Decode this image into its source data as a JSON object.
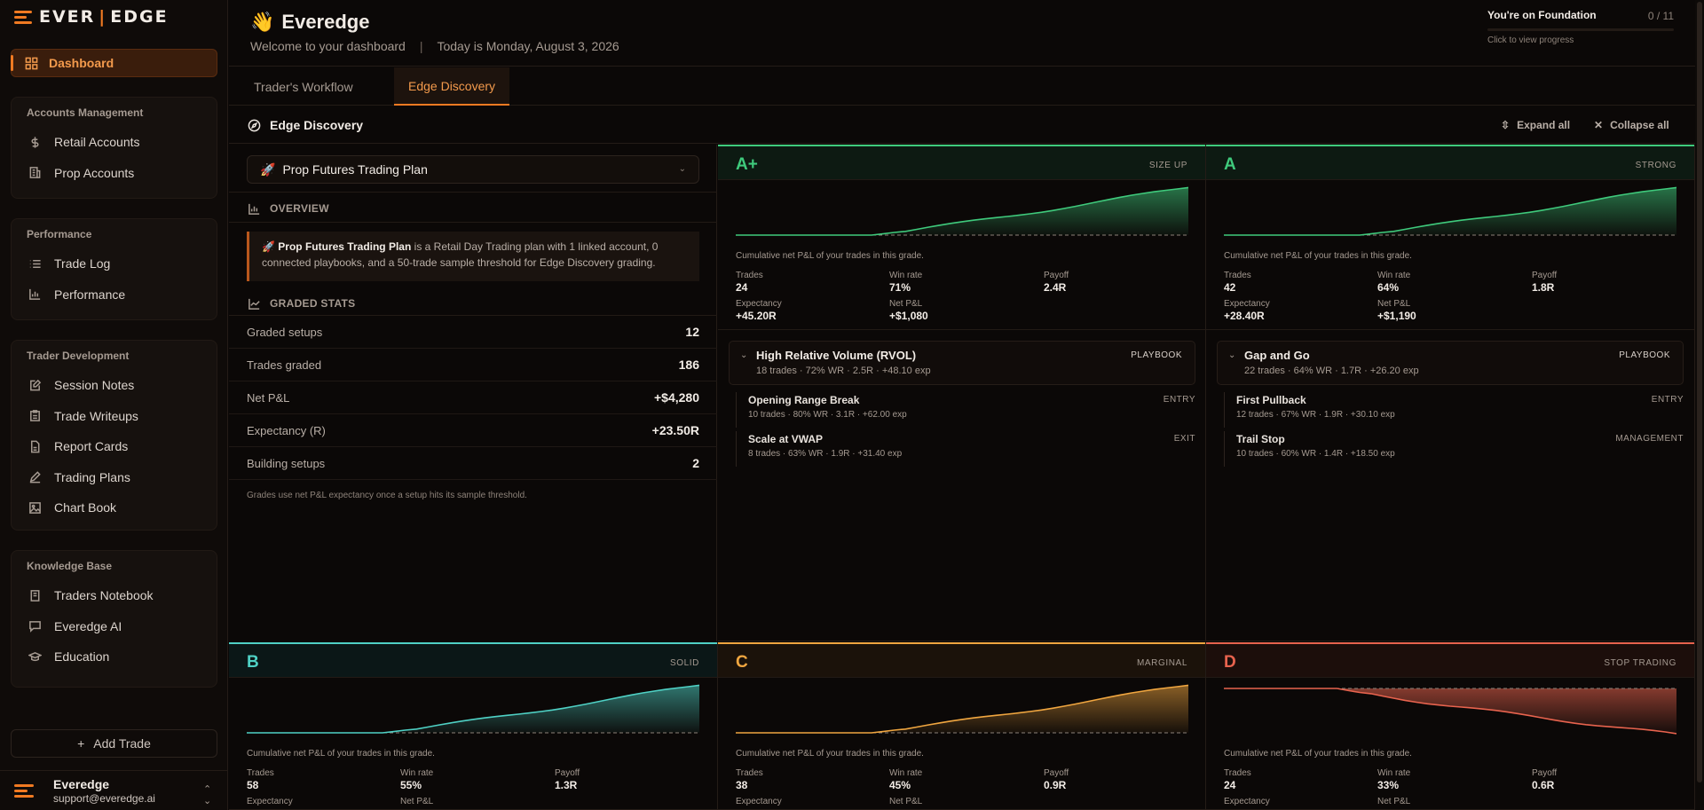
{
  "brand": {
    "left": "EVER",
    "right": "EDGE",
    "accent": "#f07a22"
  },
  "sidebar": {
    "dashboard": "Dashboard",
    "groups": [
      {
        "title": "Accounts Management",
        "items": [
          {
            "label": "Retail Accounts",
            "icon": "dollar-icon"
          },
          {
            "label": "Prop Accounts",
            "icon": "building-icon"
          }
        ]
      },
      {
        "title": "Performance",
        "items": [
          {
            "label": "Trade Log",
            "icon": "list-icon"
          },
          {
            "label": "Performance",
            "icon": "bar-chart-icon"
          }
        ]
      },
      {
        "title": "Trader Development",
        "items": [
          {
            "label": "Session Notes",
            "icon": "note-edit-icon"
          },
          {
            "label": "Trade Writeups",
            "icon": "clipboard-icon"
          },
          {
            "label": "Report Cards",
            "icon": "file-icon"
          },
          {
            "label": "Trading Plans",
            "icon": "pencil-icon"
          },
          {
            "label": "Chart Book",
            "icon": "image-icon"
          }
        ]
      },
      {
        "title": "Knowledge Base",
        "items": [
          {
            "label": "Traders Notebook",
            "icon": "book-icon"
          },
          {
            "label": "Everedge AI",
            "icon": "chat-icon"
          },
          {
            "label": "Education",
            "icon": "graduation-cap-icon"
          }
        ]
      }
    ],
    "add_trade": "Add Trade",
    "user": {
      "name": "Everedge",
      "email": "support@everedge.ai"
    }
  },
  "header": {
    "emoji": "👋",
    "title": "Everedge",
    "welcome": "Welcome to your dashboard",
    "date": "Today is Monday, August 3, 2026",
    "foundation": {
      "title": "You're on Foundation",
      "count": "0 / 11",
      "progress": 0,
      "hint": "Click to view progress"
    }
  },
  "tabs": [
    {
      "label": "Trader's Workflow",
      "active": false
    },
    {
      "label": "Edge Discovery",
      "active": true
    }
  ],
  "section": {
    "title": "Edge Discovery",
    "expand": "Expand all",
    "collapse": "Collapse all"
  },
  "plan": {
    "name": "Prop Futures Trading Plan",
    "emoji": "🚀",
    "overview_label": "OVERVIEW",
    "overview_text": " is a Retail Day Trading plan with 1 linked account, 0 connected playbooks, and a 50-trade sample threshold for Edge Discovery grading.",
    "stats_label": "GRADED STATS",
    "stats": [
      {
        "k": "Graded setups",
        "v": "12"
      },
      {
        "k": "Trades graded",
        "v": "186"
      },
      {
        "k": "Net P&L",
        "v": "+$4,280"
      },
      {
        "k": "Expectancy (R)",
        "v": "+23.50R"
      },
      {
        "k": "Building setups",
        "v": "2"
      }
    ],
    "footnote": "Grades use net P&L expectancy once a setup hits its sample threshold."
  },
  "caption": "Cumulative net P&L of your trades in this grade.",
  "labels": {
    "trades": "Trades",
    "win": "Win rate",
    "payoff": "Payoff",
    "exp": "Expectancy",
    "pnl": "Net P&L"
  },
  "grades": [
    {
      "letter": "A+",
      "tag": "SIZE UP",
      "color": "#3fca7c",
      "trades": "24",
      "win": "71%",
      "payoff": "2.4R",
      "exp": "+45.20R",
      "pnl": "+$1,080",
      "playbook": {
        "title": "High Relative Volume (RVOL)",
        "sub": "18 trades · 72% WR · 2.5R · +48.10 exp",
        "tag": "PLAYBOOK",
        "items": [
          {
            "t": "Opening Range Break",
            "s": "10 trades · 80% WR · 3.1R · +62.00 exp",
            "k": "ENTRY"
          },
          {
            "t": "Scale at VWAP",
            "s": "8 trades · 63% WR · 1.9R · +31.40 exp",
            "k": "EXIT"
          }
        ]
      }
    },
    {
      "letter": "A",
      "tag": "STRONG",
      "color": "#3fca7c",
      "trades": "42",
      "win": "64%",
      "payoff": "1.8R",
      "exp": "+28.40R",
      "pnl": "+$1,190",
      "playbook": {
        "title": "Gap and Go",
        "sub": "22 trades · 64% WR · 1.7R · +26.20 exp",
        "tag": "PLAYBOOK",
        "items": [
          {
            "t": "First Pullback",
            "s": "12 trades · 67% WR · 1.9R · +30.10 exp",
            "k": "ENTRY"
          },
          {
            "t": "Trail Stop",
            "s": "10 trades · 60% WR · 1.4R · +18.50 exp",
            "k": "MANAGEMENT"
          }
        ]
      }
    },
    {
      "letter": "B",
      "tag": "SOLID",
      "color": "#4fd1c5",
      "trades": "58",
      "win": "55%",
      "payoff": "1.3R"
    },
    {
      "letter": "C",
      "tag": "MARGINAL",
      "color": "#f0a640",
      "trades": "38",
      "win": "45%",
      "payoff": "0.9R"
    },
    {
      "letter": "D",
      "tag": "STOP TRADING",
      "color": "#e8634e",
      "trades": "24",
      "win": "33%",
      "payoff": "0.6R"
    }
  ]
}
